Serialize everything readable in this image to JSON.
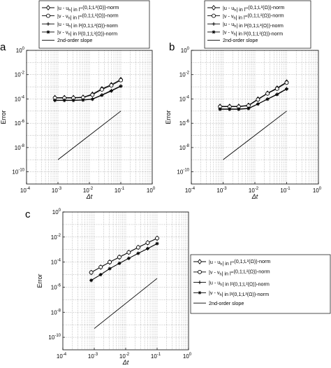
{
  "figure": {
    "panels": [
      {
        "letter": "a"
      },
      {
        "letter": "b"
      },
      {
        "letter": "c"
      }
    ]
  },
  "chart_data": [
    {
      "type": "line",
      "panel": "a",
      "xlabel": "Δt",
      "ylabel": "Error",
      "x_scale": "log",
      "y_scale": "log",
      "xlim": [
        0.0001,
        1
      ],
      "ylim": [
        1e-11,
        1
      ],
      "x_ticks": [
        "10^-4",
        "10^-3",
        "10^-2",
        "10^-1",
        "10^0"
      ],
      "y_ticks": [
        "10^-10",
        "10^-8",
        "10^-6",
        "10^-4",
        "10^-2",
        "10^0"
      ],
      "grid": true,
      "legend_position": "above",
      "series": [
        {
          "name": "|u - u_h| in l^∞(0,1;L²(Ω))-norm",
          "marker": "diamond",
          "x": [
            0.0008,
            0.0016,
            0.0031,
            0.0063,
            0.0125,
            0.025,
            0.05,
            0.1
          ],
          "y": [
            0.00013,
            0.00013,
            0.00013,
            0.00014,
            0.00025,
            0.0007,
            0.0015,
            0.004
          ]
        },
        {
          "name": "|v - v_h| in l^∞(0,1;L²(Ω))-norm",
          "marker": "circle",
          "x": [
            0.0008,
            0.0016,
            0.0031,
            0.0063,
            0.0125,
            0.025,
            0.05,
            0.1
          ],
          "y": [
            0.00012,
            0.00012,
            0.00012,
            0.00013,
            0.00022,
            0.0006,
            0.0013,
            0.0035
          ]
        },
        {
          "name": "|u - u_h| in l²(0,1;L²(Ω))-norm",
          "marker": "plus",
          "x": [
            0.0008,
            0.0016,
            0.0031,
            0.0063,
            0.0125,
            0.025,
            0.05,
            0.1
          ],
          "y": [
            8e-05,
            8e-05,
            8e-05,
            8.5e-05,
            0.0001,
            0.00022,
            0.0005,
            0.0012
          ]
        },
        {
          "name": "|v - v_h| in l²(0,1;L²(Ω))-norm",
          "marker": "star",
          "x": [
            0.0008,
            0.0016,
            0.0031,
            0.0063,
            0.0125,
            0.025,
            0.05,
            0.1
          ],
          "y": [
            7.5e-05,
            7.5e-05,
            7.5e-05,
            8e-05,
            9.5e-05,
            0.0002,
            0.00045,
            0.0011
          ]
        },
        {
          "name": "2nd-order slope",
          "marker": "none",
          "x": [
            0.001,
            0.1
          ],
          "y": [
            1e-09,
            1e-05
          ]
        }
      ]
    },
    {
      "type": "line",
      "panel": "b",
      "xlabel": "Δt",
      "ylabel": "Error",
      "x_scale": "log",
      "y_scale": "log",
      "xlim": [
        0.0001,
        1
      ],
      "ylim": [
        1e-11,
        1
      ],
      "x_ticks": [
        "10^-4",
        "10^-3",
        "10^-2",
        "10^-1",
        "10^0"
      ],
      "y_ticks": [
        "10^-10",
        "10^-8",
        "10^-6",
        "10^-4",
        "10^-2",
        "10^0"
      ],
      "grid": true,
      "legend_position": "above",
      "series": [
        {
          "name": "|u - u_h| in l^∞(0,1;L²(Ω))-norm",
          "marker": "diamond",
          "x": [
            0.0008,
            0.0016,
            0.0031,
            0.0063,
            0.0125,
            0.025,
            0.05,
            0.1
          ],
          "y": [
            2.5e-05,
            2.5e-05,
            2.5e-05,
            3e-05,
            0.0001,
            0.0003,
            0.0008,
            0.0025
          ]
        },
        {
          "name": "|v - v_h| in l^∞(0,1;L²(Ω))-norm",
          "marker": "circle",
          "x": [
            0.0008,
            0.0016,
            0.0031,
            0.0063,
            0.0125,
            0.025,
            0.05,
            0.1
          ],
          "y": [
            2.3e-05,
            2.3e-05,
            2.3e-05,
            2.8e-05,
            9e-05,
            0.00028,
            0.0007,
            0.0022
          ]
        },
        {
          "name": "|u - u_h| in l²(0,1;L²(Ω))-norm",
          "marker": "plus",
          "x": [
            0.0008,
            0.0016,
            0.0031,
            0.0063,
            0.0125,
            0.025,
            0.05,
            0.1
          ],
          "y": [
            1.5e-05,
            1.5e-05,
            1.5e-05,
            1.7e-05,
            4e-05,
            0.0001,
            0.00025,
            0.0007
          ]
        },
        {
          "name": "|v - v_h| in l²(0,1;L²(Ω))-norm",
          "marker": "star",
          "x": [
            0.0008,
            0.0016,
            0.0031,
            0.0063,
            0.0125,
            0.025,
            0.05,
            0.1
          ],
          "y": [
            1.4e-05,
            1.4e-05,
            1.4e-05,
            1.6e-05,
            3.8e-05,
            9.5e-05,
            0.00023,
            0.00065
          ]
        },
        {
          "name": "2nd-order slope",
          "marker": "none",
          "x": [
            0.001,
            0.1
          ],
          "y": [
            1e-09,
            1e-05
          ]
        }
      ]
    },
    {
      "type": "line",
      "panel": "c",
      "xlabel": "Δt",
      "ylabel": "Error",
      "x_scale": "log",
      "y_scale": "log",
      "xlim": [
        0.0001,
        1
      ],
      "ylim": [
        1e-11,
        1
      ],
      "x_ticks": [
        "10^-4",
        "10^-3",
        "10^-2",
        "10^-1",
        "10^0"
      ],
      "y_ticks": [
        "10^-10",
        "10^-8",
        "10^-6",
        "10^-4",
        "10^-2",
        "10^0"
      ],
      "grid": true,
      "legend_position": "right",
      "series": [
        {
          "name": "|u - u_h| in l^∞(0,1;L²(Ω))-norm",
          "marker": "diamond",
          "x": [
            0.0008,
            0.0016,
            0.0031,
            0.0063,
            0.0125,
            0.025,
            0.05,
            0.1
          ],
          "y": [
            1.5e-05,
            4e-05,
            0.0001,
            0.00025,
            0.0006,
            0.0015,
            0.0035,
            0.008
          ]
        },
        {
          "name": "|v - v_h| in l^∞(0,1;L²(Ω))-norm",
          "marker": "circle",
          "x": [
            0.0008,
            0.0016,
            0.0031,
            0.0063,
            0.0125,
            0.025,
            0.05,
            0.1
          ],
          "y": [
            1.5e-05,
            4e-05,
            0.0001,
            0.00025,
            0.0006,
            0.0015,
            0.0035,
            0.008
          ]
        },
        {
          "name": "|u - u_h| in l²(0,1;L²(Ω))-norm",
          "marker": "plus",
          "x": [
            0.0008,
            0.0016,
            0.0031,
            0.0063,
            0.0125,
            0.025,
            0.05,
            0.1
          ],
          "y": [
            3.5e-06,
            1e-05,
            3e-05,
            8e-05,
            0.0002,
            0.0005,
            0.0012,
            0.003
          ]
        },
        {
          "name": "|v - v_h| in l²(0,1;L²(Ω))-norm",
          "marker": "star",
          "x": [
            0.0008,
            0.0016,
            0.0031,
            0.0063,
            0.0125,
            0.025,
            0.05,
            0.1
          ],
          "y": [
            3.5e-06,
            1e-05,
            3e-05,
            8e-05,
            0.0002,
            0.0005,
            0.0012,
            0.003
          ]
        },
        {
          "name": "2nd-order slope",
          "marker": "none",
          "x": [
            0.001,
            0.1
          ],
          "y": [
            5e-10,
            5e-06
          ]
        }
      ]
    }
  ]
}
